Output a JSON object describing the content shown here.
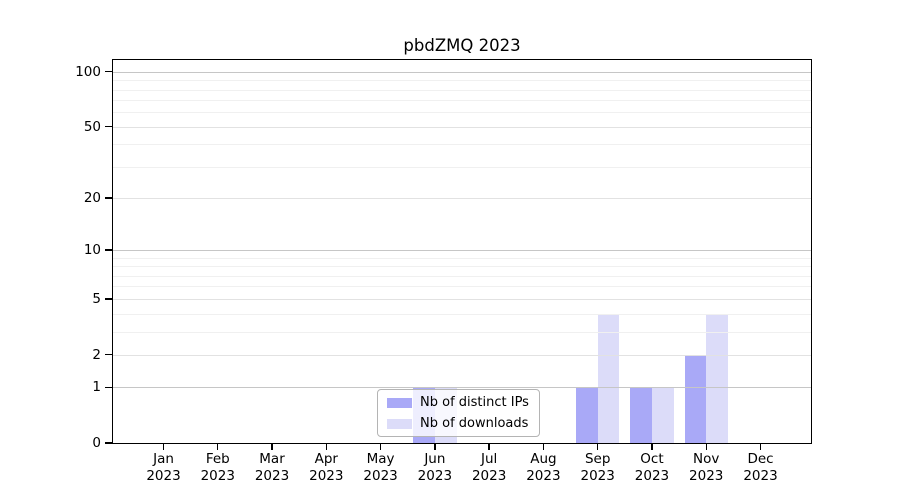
{
  "chart_data": {
    "type": "bar",
    "title": "pbdZMQ 2023",
    "categories": [
      "Jan",
      "Feb",
      "Mar",
      "Apr",
      "May",
      "Jun",
      "Jul",
      "Aug",
      "Sep",
      "Oct",
      "Nov",
      "Dec"
    ],
    "category_year": "2023",
    "series": [
      {
        "name": "Nb of distinct IPs",
        "color": "#a9a9f7",
        "values": [
          0,
          0,
          0,
          0,
          0,
          1,
          0,
          0,
          1,
          1,
          2,
          0
        ]
      },
      {
        "name": "Nb of downloads",
        "color": "#dcdcf9",
        "values": [
          0,
          0,
          0,
          0,
          0,
          1,
          0,
          0,
          4,
          1,
          4,
          0
        ]
      }
    ],
    "xlabel": "",
    "ylabel": "",
    "y_axis": {
      "scale": "log1p",
      "ylim": [
        0,
        116
      ],
      "tick_values": [
        0,
        1,
        2,
        5,
        10,
        20,
        50,
        100
      ],
      "tick_labels": [
        "0",
        "1",
        "2",
        "5",
        "10",
        "20",
        "50",
        "100"
      ],
      "minor_gridlines": [
        3,
        4,
        6,
        7,
        8,
        9,
        30,
        40,
        60,
        70,
        80,
        90
      ]
    },
    "grid": "horizontal",
    "legend_position": "bottom-center"
  },
  "style": {
    "background": "#ffffff",
    "axis_color": "#000000",
    "grid_decade": "#c6c6c6",
    "grid_major": "#e2e2e2",
    "grid_minor": "#f0f0f0",
    "legend_border": "#b4b4b4"
  }
}
